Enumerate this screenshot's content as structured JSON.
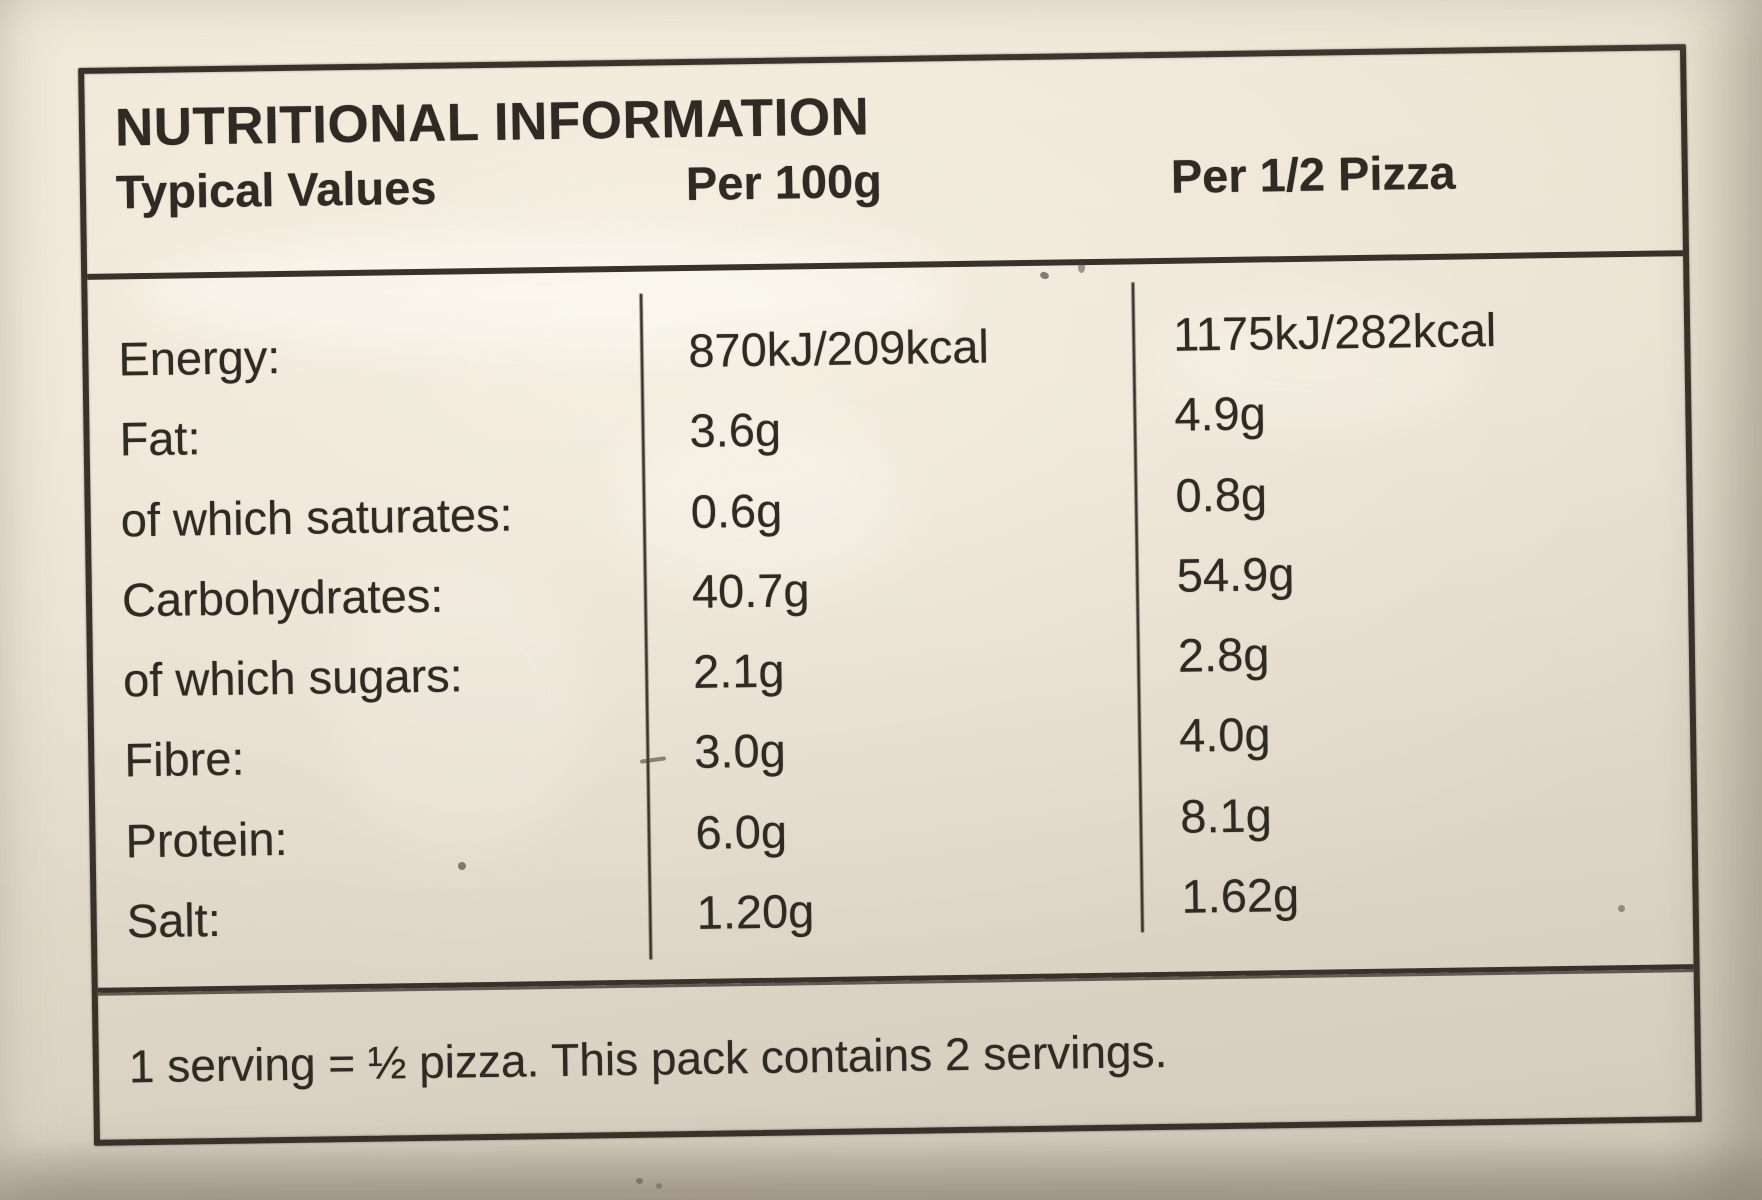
{
  "label": {
    "title": "NUTRITIONAL INFORMATION",
    "columns": {
      "typical_values": "Typical Values",
      "per_100g": "Per 100g",
      "per_half_pizza": "Per 1/2 Pizza"
    },
    "rows": [
      {
        "name": "Energy:",
        "per_100g": "870kJ/209kcal",
        "per_half_pizza": "1175kJ/282kcal"
      },
      {
        "name": "Fat:",
        "per_100g": "3.6g",
        "per_half_pizza": "4.9g"
      },
      {
        "name": "of which saturates:",
        "per_100g": "0.6g",
        "per_half_pizza": "0.8g"
      },
      {
        "name": "Carbohydrates:",
        "per_100g": "40.7g",
        "per_half_pizza": "54.9g"
      },
      {
        "name": "of which sugars:",
        "per_100g": "2.1g",
        "per_half_pizza": "2.8g"
      },
      {
        "name": "Fibre:",
        "per_100g": "3.0g",
        "per_half_pizza": "4.0g"
      },
      {
        "name": "Protein:",
        "per_100g": "6.0g",
        "per_half_pizza": "8.1g"
      },
      {
        "name": "Salt:",
        "per_100g": "1.20g",
        "per_half_pizza": "1.62g"
      }
    ],
    "footer_note": "1 serving = ½ pizza. This pack contains 2 servings."
  },
  "colors": {
    "paper": "#e8dfce",
    "ink": "#2f2a23",
    "border": "#39322a"
  }
}
